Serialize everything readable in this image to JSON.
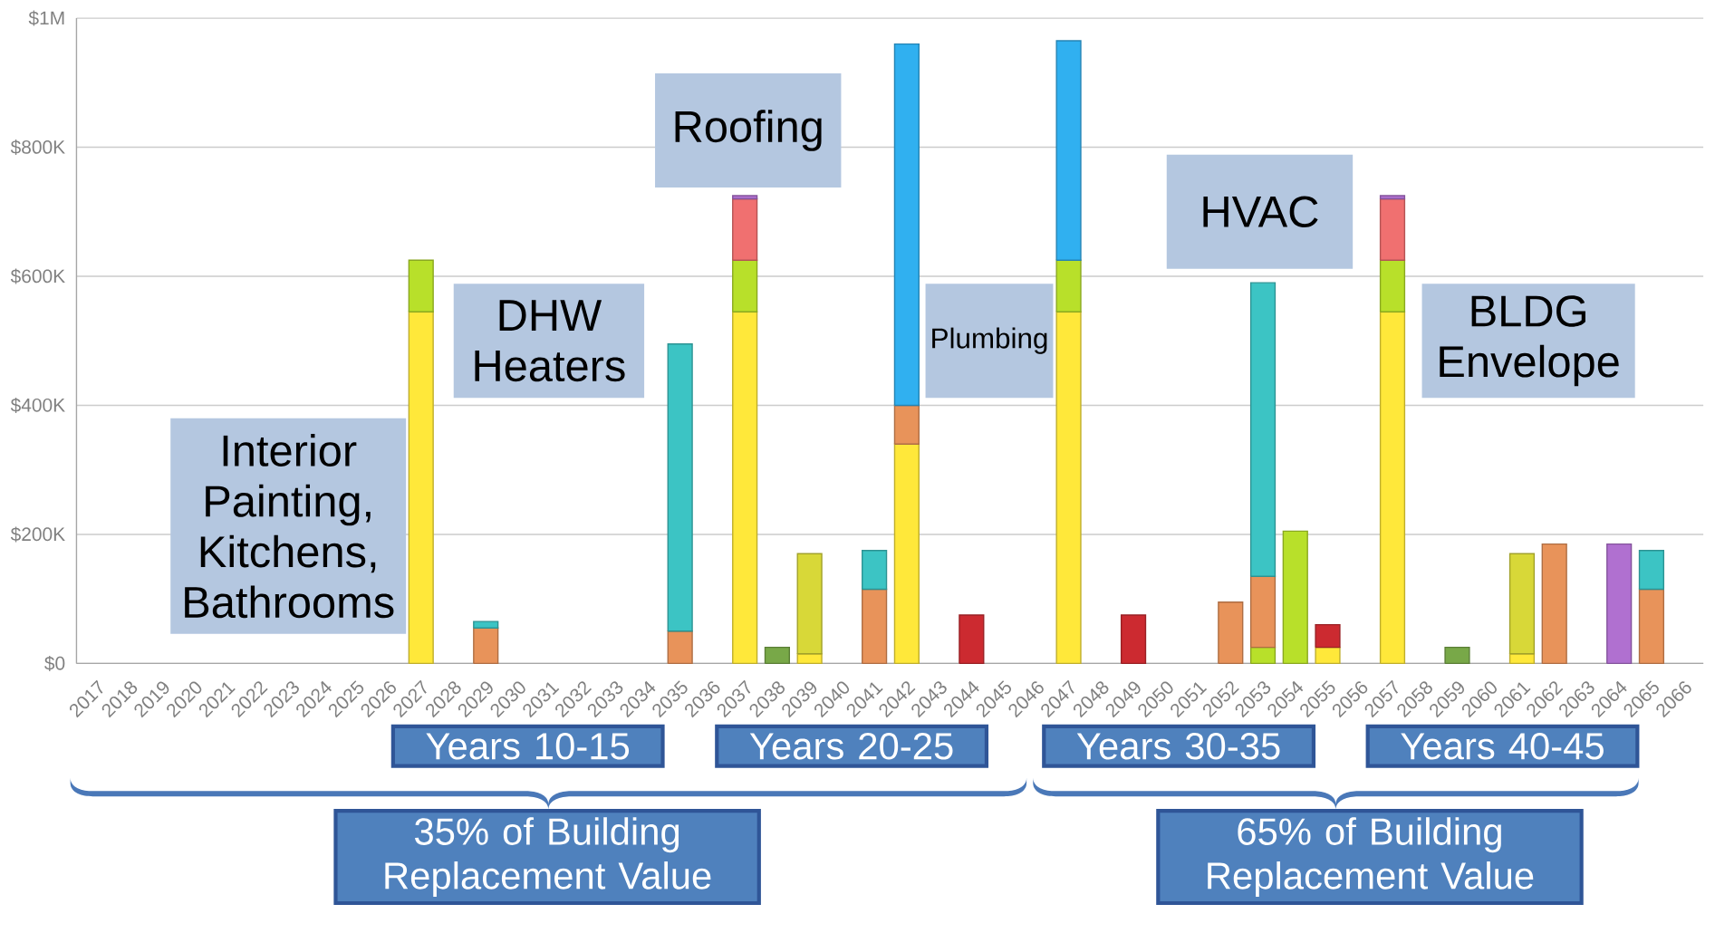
{
  "chart_data": {
    "type": "bar",
    "stacked": true,
    "categories": [
      "2017",
      "2018",
      "2019",
      "2020",
      "2021",
      "2022",
      "2023",
      "2024",
      "2025",
      "2026",
      "2027",
      "2028",
      "2029",
      "2030",
      "2031",
      "2032",
      "2033",
      "2034",
      "2035",
      "2036",
      "2037",
      "2038",
      "2039",
      "2040",
      "2041",
      "2042",
      "2043",
      "2044",
      "2045",
      "2046",
      "2047",
      "2048",
      "2049",
      "2050",
      "2051",
      "2052",
      "2053",
      "2054",
      "2055",
      "2056",
      "2057",
      "2058",
      "2059",
      "2060",
      "2061",
      "2062",
      "2063",
      "2064",
      "2065",
      "2066"
    ],
    "series": [
      {
        "color": "#ffe83a",
        "values": [
          null,
          null,
          null,
          null,
          null,
          null,
          null,
          null,
          null,
          null,
          545000,
          null,
          null,
          null,
          null,
          null,
          null,
          null,
          null,
          null,
          545000,
          null,
          15000,
          null,
          null,
          340000,
          null,
          null,
          null,
          null,
          545000,
          null,
          null,
          null,
          null,
          null,
          null,
          null,
          25000,
          null,
          545000,
          null,
          null,
          null,
          15000,
          null,
          null,
          null,
          null,
          null
        ]
      },
      {
        "color": "#b8e02a",
        "values": [
          null,
          null,
          null,
          null,
          null,
          null,
          null,
          null,
          null,
          null,
          80000,
          null,
          null,
          null,
          null,
          null,
          null,
          null,
          null,
          null,
          80000,
          null,
          null,
          null,
          null,
          null,
          null,
          null,
          null,
          null,
          80000,
          null,
          null,
          null,
          null,
          null,
          25000,
          205000,
          null,
          null,
          80000,
          null,
          null,
          null,
          null,
          null,
          null,
          null,
          null,
          null
        ]
      },
      {
        "color": "#78a848",
        "values": [
          null,
          null,
          null,
          null,
          null,
          null,
          null,
          null,
          null,
          null,
          null,
          null,
          null,
          null,
          null,
          null,
          null,
          null,
          null,
          null,
          null,
          25000,
          null,
          null,
          null,
          null,
          null,
          null,
          null,
          null,
          null,
          null,
          null,
          null,
          null,
          null,
          null,
          null,
          null,
          null,
          null,
          null,
          25000,
          null,
          null,
          null,
          null,
          null,
          null,
          null
        ]
      },
      {
        "color": "#d8d838",
        "values": [
          null,
          null,
          null,
          null,
          null,
          null,
          null,
          null,
          null,
          null,
          null,
          null,
          null,
          null,
          null,
          null,
          null,
          null,
          null,
          null,
          null,
          null,
          155000,
          null,
          null,
          null,
          null,
          null,
          null,
          null,
          null,
          null,
          null,
          null,
          null,
          null,
          null,
          null,
          null,
          null,
          null,
          null,
          null,
          null,
          155000,
          null,
          null,
          null,
          null,
          null
        ]
      },
      {
        "color": "#e8935a",
        "values": [
          null,
          null,
          null,
          null,
          null,
          null,
          null,
          null,
          null,
          null,
          null,
          null,
          55000,
          null,
          null,
          null,
          null,
          null,
          50000,
          null,
          null,
          null,
          null,
          null,
          115000,
          60000,
          null,
          null,
          null,
          null,
          null,
          null,
          null,
          null,
          null,
          95000,
          110000,
          null,
          null,
          null,
          null,
          null,
          null,
          null,
          null,
          185000,
          null,
          null,
          115000,
          null
        ]
      },
      {
        "color": "#3cc4c4",
        "values": [
          null,
          null,
          null,
          null,
          null,
          null,
          null,
          null,
          null,
          null,
          null,
          null,
          10000,
          null,
          null,
          null,
          null,
          null,
          445000,
          null,
          null,
          null,
          null,
          null,
          60000,
          null,
          null,
          null,
          null,
          null,
          null,
          null,
          null,
          null,
          null,
          null,
          455000,
          null,
          null,
          null,
          null,
          null,
          null,
          null,
          null,
          null,
          null,
          null,
          60000,
          null
        ]
      },
      {
        "color": "#cc2a30",
        "values": [
          null,
          null,
          null,
          null,
          null,
          null,
          null,
          null,
          null,
          null,
          null,
          null,
          null,
          null,
          null,
          null,
          null,
          null,
          null,
          null,
          null,
          null,
          null,
          null,
          null,
          null,
          null,
          75000,
          null,
          null,
          null,
          null,
          75000,
          null,
          null,
          null,
          null,
          null,
          35000,
          null,
          null,
          null,
          null,
          null,
          null,
          null,
          null,
          null,
          null,
          null
        ]
      },
      {
        "color": "#f07070",
        "values": [
          null,
          null,
          null,
          null,
          null,
          null,
          null,
          null,
          null,
          null,
          null,
          null,
          null,
          null,
          null,
          null,
          null,
          null,
          null,
          null,
          95000,
          null,
          null,
          null,
          null,
          null,
          null,
          null,
          null,
          null,
          null,
          null,
          null,
          null,
          null,
          null,
          null,
          null,
          null,
          null,
          95000,
          null,
          null,
          null,
          null,
          null,
          null,
          null,
          null,
          null
        ]
      },
      {
        "color": "#b070d0",
        "values": [
          null,
          null,
          null,
          null,
          null,
          null,
          null,
          null,
          null,
          null,
          null,
          null,
          null,
          null,
          null,
          null,
          null,
          null,
          null,
          null,
          5000,
          null,
          null,
          null,
          null,
          null,
          null,
          null,
          null,
          null,
          null,
          null,
          null,
          null,
          null,
          null,
          null,
          null,
          null,
          null,
          5000,
          null,
          null,
          null,
          null,
          null,
          null,
          185000,
          null,
          null
        ]
      },
      {
        "color": "#30b0f0",
        "values": [
          null,
          null,
          null,
          null,
          null,
          null,
          null,
          null,
          null,
          null,
          null,
          null,
          null,
          null,
          null,
          null,
          null,
          null,
          null,
          null,
          null,
          null,
          null,
          null,
          null,
          560000,
          null,
          null,
          null,
          null,
          340000,
          null,
          null,
          null,
          null,
          null,
          null,
          null,
          null,
          null,
          null,
          null,
          null,
          null,
          null,
          null,
          null,
          null,
          null,
          null
        ]
      }
    ],
    "ylim": [
      0,
      1000000
    ],
    "yticks": [
      {
        "value": 0,
        "label": "$0"
      },
      {
        "value": 200000,
        "label": "$200K"
      },
      {
        "value": 400000,
        "label": "$400K"
      },
      {
        "value": 600000,
        "label": "$600K"
      },
      {
        "value": 800000,
        "label": "$800K"
      },
      {
        "value": 1000000,
        "label": "$1M"
      }
    ],
    "grid": "y",
    "annotations": [
      "Interior Painting, Kitchens, Bathrooms",
      "DHW Heaters",
      "Roofing",
      "Plumbing",
      "HVAC",
      "BLDG Envelope",
      "Years 10-15",
      "Years 20-25",
      "Years 30-35",
      "Years 40-45",
      "35% of Building Replacement Value",
      "65% of Building Replacement Value"
    ]
  }
}
